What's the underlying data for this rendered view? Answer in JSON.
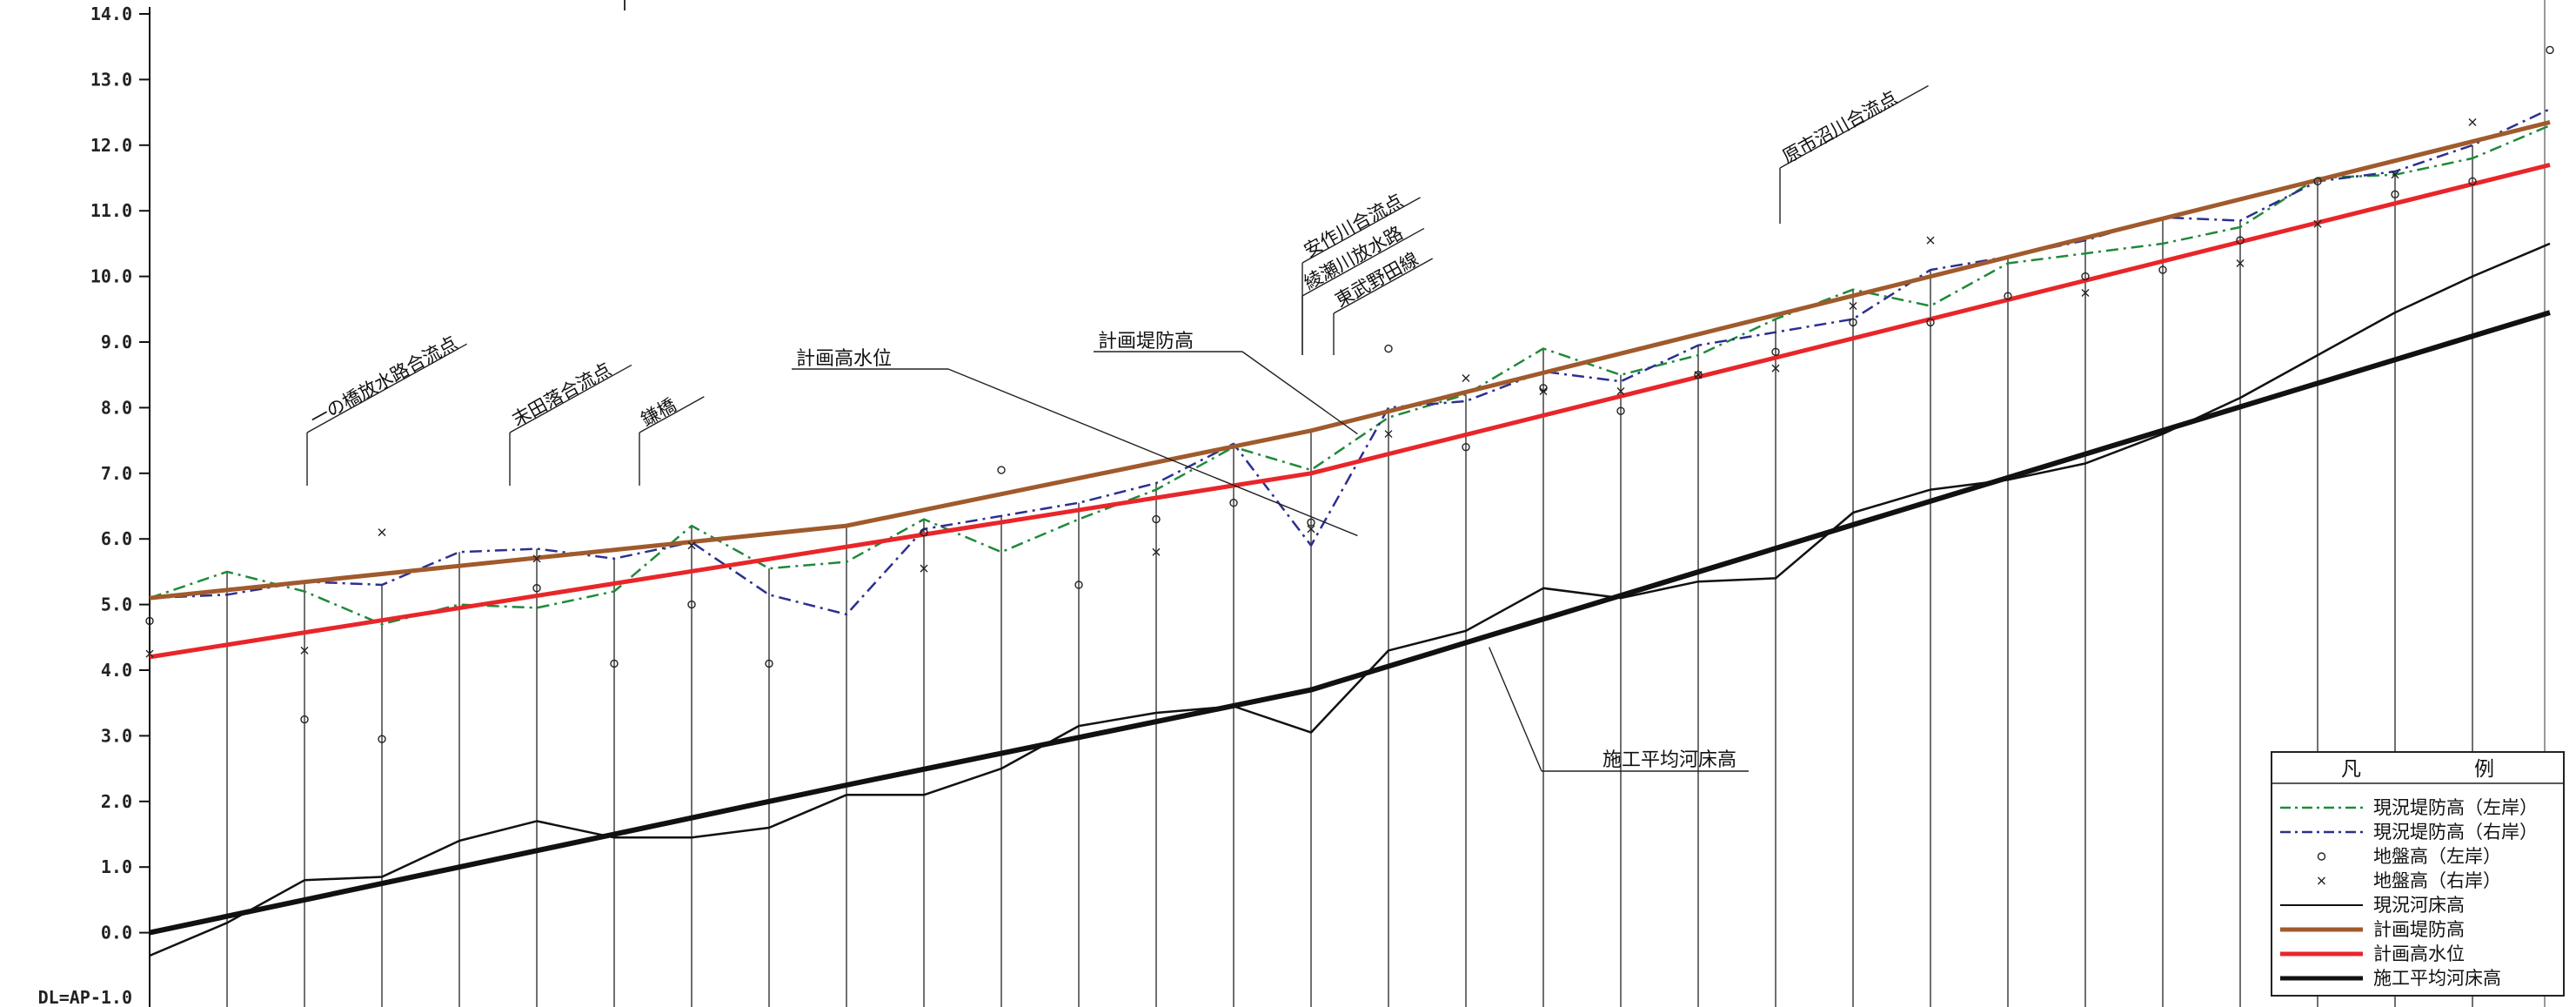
{
  "chart_data": {
    "type": "line",
    "y_axis": {
      "range": [
        -1.0,
        14.0
      ],
      "ticks": [
        "14.0",
        "13.0",
        "12.0",
        "11.0",
        "10.0",
        "9.0",
        "8.0",
        "7.0",
        "6.0",
        "5.0",
        "4.0",
        "3.0",
        "2.0",
        "1.0",
        "0.0"
      ],
      "datum_label": "DL=AP-1.0"
    },
    "x_stations": [
      0,
      1,
      2,
      3,
      4,
      5,
      6,
      7,
      8,
      9,
      10,
      11,
      12,
      13,
      14,
      15,
      16,
      17,
      18,
      19,
      20,
      21,
      22,
      23,
      24,
      25,
      26,
      27,
      28,
      29,
      30,
      31,
      32
    ],
    "series": [
      {
        "key": "bank_left",
        "name": "現況堤防高（左岸）",
        "color": "#1f8a3a",
        "dash": "14,6,3,6",
        "width": 2.5,
        "points": [
          [
            0,
            5.1
          ],
          [
            1,
            5.5
          ],
          [
            2,
            5.2
          ],
          [
            3,
            4.7
          ],
          [
            4,
            5.0
          ],
          [
            5,
            4.95
          ],
          [
            6,
            5.2
          ],
          [
            7,
            6.2
          ],
          [
            8,
            5.55
          ],
          [
            9,
            5.65
          ],
          [
            10,
            6.3
          ],
          [
            11,
            5.8
          ],
          [
            12,
            6.3
          ],
          [
            13,
            6.75
          ],
          [
            14,
            7.4
          ],
          [
            15,
            7.05
          ],
          [
            16,
            7.85
          ],
          [
            17,
            8.2
          ],
          [
            18,
            8.9
          ],
          [
            19,
            8.5
          ],
          [
            20,
            8.8
          ],
          [
            21,
            9.35
          ],
          [
            22,
            9.8
          ],
          [
            23,
            9.55
          ],
          [
            24,
            10.2
          ],
          [
            25,
            10.35
          ],
          [
            26,
            10.5
          ],
          [
            27,
            10.75
          ],
          [
            28,
            11.5
          ],
          [
            29,
            11.55
          ],
          [
            30,
            11.8
          ],
          [
            31,
            12.3
          ]
        ]
      },
      {
        "key": "bank_right",
        "name": "現況堤防高（右岸）",
        "color": "#2c2f8f",
        "dash": "14,6,3,6",
        "width": 2.5,
        "points": [
          [
            0,
            5.1
          ],
          [
            1,
            5.15
          ],
          [
            2,
            5.35
          ],
          [
            3,
            5.3
          ],
          [
            4,
            5.8
          ],
          [
            5,
            5.85
          ],
          [
            6,
            5.7
          ],
          [
            7,
            5.95
          ],
          [
            8,
            5.15
          ],
          [
            9,
            4.85
          ],
          [
            10,
            6.15
          ],
          [
            11,
            6.35
          ],
          [
            12,
            6.55
          ],
          [
            13,
            6.85
          ],
          [
            14,
            7.45
          ],
          [
            15,
            5.9
          ],
          [
            16,
            8.0
          ],
          [
            17,
            8.1
          ],
          [
            18,
            8.55
          ],
          [
            19,
            8.4
          ],
          [
            20,
            8.95
          ],
          [
            21,
            9.15
          ],
          [
            22,
            9.35
          ],
          [
            23,
            10.1
          ],
          [
            24,
            10.3
          ],
          [
            25,
            10.55
          ],
          [
            26,
            10.9
          ],
          [
            27,
            10.85
          ],
          [
            28,
            11.45
          ],
          [
            29,
            11.6
          ],
          [
            30,
            12.0
          ],
          [
            31,
            12.55
          ]
        ]
      },
      {
        "key": "bed_current",
        "name": "現況河床高",
        "color": "#111111",
        "dash": "",
        "width": 2.5,
        "points": [
          [
            0,
            -0.35
          ],
          [
            1,
            0.15
          ],
          [
            2,
            0.8
          ],
          [
            3,
            0.85
          ],
          [
            4,
            1.4
          ],
          [
            5,
            1.7
          ],
          [
            6,
            1.45
          ],
          [
            7,
            1.45
          ],
          [
            8,
            1.6
          ],
          [
            9,
            2.1
          ],
          [
            10,
            2.1
          ],
          [
            11,
            2.5
          ],
          [
            12,
            3.15
          ],
          [
            13,
            3.35
          ],
          [
            14,
            3.45
          ],
          [
            15,
            3.05
          ],
          [
            16,
            4.3
          ],
          [
            17,
            4.6
          ],
          [
            18,
            5.25
          ],
          [
            19,
            5.1
          ],
          [
            20,
            5.35
          ],
          [
            21,
            5.4
          ],
          [
            22,
            6.4
          ],
          [
            23,
            6.75
          ],
          [
            24,
            6.9
          ],
          [
            25,
            7.15
          ],
          [
            26,
            7.6
          ],
          [
            27,
            8.15
          ],
          [
            28,
            8.8
          ],
          [
            29,
            9.45
          ],
          [
            30,
            10.0
          ],
          [
            31,
            10.5
          ]
        ]
      },
      {
        "key": "plan_levee",
        "name": "計画堤防高",
        "color": "#a05a2c",
        "dash": "",
        "width": 5,
        "points": [
          [
            0,
            5.1
          ],
          [
            9,
            6.2
          ],
          [
            15,
            7.65
          ],
          [
            31,
            12.35
          ]
        ]
      },
      {
        "key": "plan_hwl",
        "name": "計画高水位",
        "color": "#e8262a",
        "dash": "",
        "width": 5,
        "points": [
          [
            0,
            4.2
          ],
          [
            15,
            7.0
          ],
          [
            31,
            11.7
          ]
        ]
      },
      {
        "key": "bed_plan",
        "name": "施工平均河床高",
        "color": "#111111",
        "dash": "",
        "width": 6,
        "points": [
          [
            0,
            0.0
          ],
          [
            9,
            2.25
          ],
          [
            15,
            3.7
          ],
          [
            31,
            9.45
          ]
        ]
      }
    ],
    "ground_left_points": [
      [
        0,
        4.75
      ],
      [
        2,
        3.25
      ],
      [
        3,
        2.95
      ],
      [
        5,
        5.25
      ],
      [
        6,
        4.1
      ],
      [
        7,
        5.0
      ],
      [
        8,
        4.1
      ],
      [
        10,
        6.1
      ],
      [
        11,
        7.05
      ],
      [
        12,
        5.3
      ],
      [
        13,
        6.3
      ],
      [
        14,
        6.55
      ],
      [
        15,
        6.25
      ],
      [
        16,
        8.9
      ],
      [
        17,
        7.4
      ],
      [
        18,
        8.3
      ],
      [
        19,
        7.95
      ],
      [
        20,
        8.5
      ],
      [
        21,
        8.85
      ],
      [
        22,
        9.3
      ],
      [
        23,
        9.3
      ],
      [
        24,
        9.7
      ],
      [
        25,
        10.0
      ],
      [
        26,
        10.1
      ],
      [
        27,
        10.55
      ],
      [
        28,
        11.45
      ],
      [
        29,
        11.25
      ],
      [
        30,
        11.45
      ],
      [
        31,
        13.45
      ]
    ],
    "ground_right_points": [
      [
        0,
        4.25
      ],
      [
        2,
        4.3
      ],
      [
        3,
        6.1
      ],
      [
        5,
        5.7
      ],
      [
        7,
        5.9
      ],
      [
        10,
        5.55
      ],
      [
        13,
        5.8
      ],
      [
        15,
        6.15
      ],
      [
        16,
        7.6
      ],
      [
        17,
        8.45
      ],
      [
        18,
        8.25
      ],
      [
        19,
        8.25
      ],
      [
        20,
        8.5
      ],
      [
        21,
        8.6
      ],
      [
        22,
        9.55
      ],
      [
        23,
        10.55
      ],
      [
        25,
        9.75
      ],
      [
        27,
        10.2
      ],
      [
        28,
        10.8
      ],
      [
        29,
        11.55
      ],
      [
        30,
        12.35
      ]
    ],
    "legend": {
      "title_left": "凡",
      "title_right": "例",
      "placement": "bottom-right",
      "items": [
        {
          "label": "現況堤防高（左岸）",
          "symbol": "dashdot",
          "color": "#1f8a3a"
        },
        {
          "label": "現況堤防高（右岸）",
          "symbol": "dashdot",
          "color": "#2c2f8f"
        },
        {
          "label": "地盤高（左岸）",
          "symbol": "circle",
          "color": "#222222"
        },
        {
          "label": "地盤高（右岸）",
          "symbol": "cross",
          "color": "#222222"
        },
        {
          "label": "現況河床高",
          "symbol": "thin",
          "color": "#111111"
        },
        {
          "label": "計画堤防高",
          "symbol": "thick",
          "color": "#a05a2c"
        },
        {
          "label": "計画高水位",
          "symbol": "thick",
          "color": "#e8262a"
        },
        {
          "label": "施工平均河床高",
          "symbol": "thick",
          "color": "#111111"
        }
      ]
    },
    "callouts": [
      {
        "text": "計画高水位",
        "x": 15.6,
        "y": 6.05
      },
      {
        "text": "計画堤防高",
        "x": 15.6,
        "y": 7.6
      },
      {
        "text": "施工平均河床高",
        "x": 17.3,
        "y": 4.35
      }
    ],
    "location_annotations": [
      {
        "text": "一の橋放水路合流点",
        "x": 2.2
      },
      {
        "text": "末田落合流点",
        "x": 4.8
      },
      {
        "text": "鎌橋",
        "x": 6.5
      },
      {
        "text": "安作川合流点",
        "x": 15.0
      },
      {
        "text": "綾瀬川放水路",
        "x": 15.0
      },
      {
        "text": "東武野田線",
        "x": 15.5
      },
      {
        "text": "原市沼川合流点",
        "x": 22.2
      }
    ]
  }
}
